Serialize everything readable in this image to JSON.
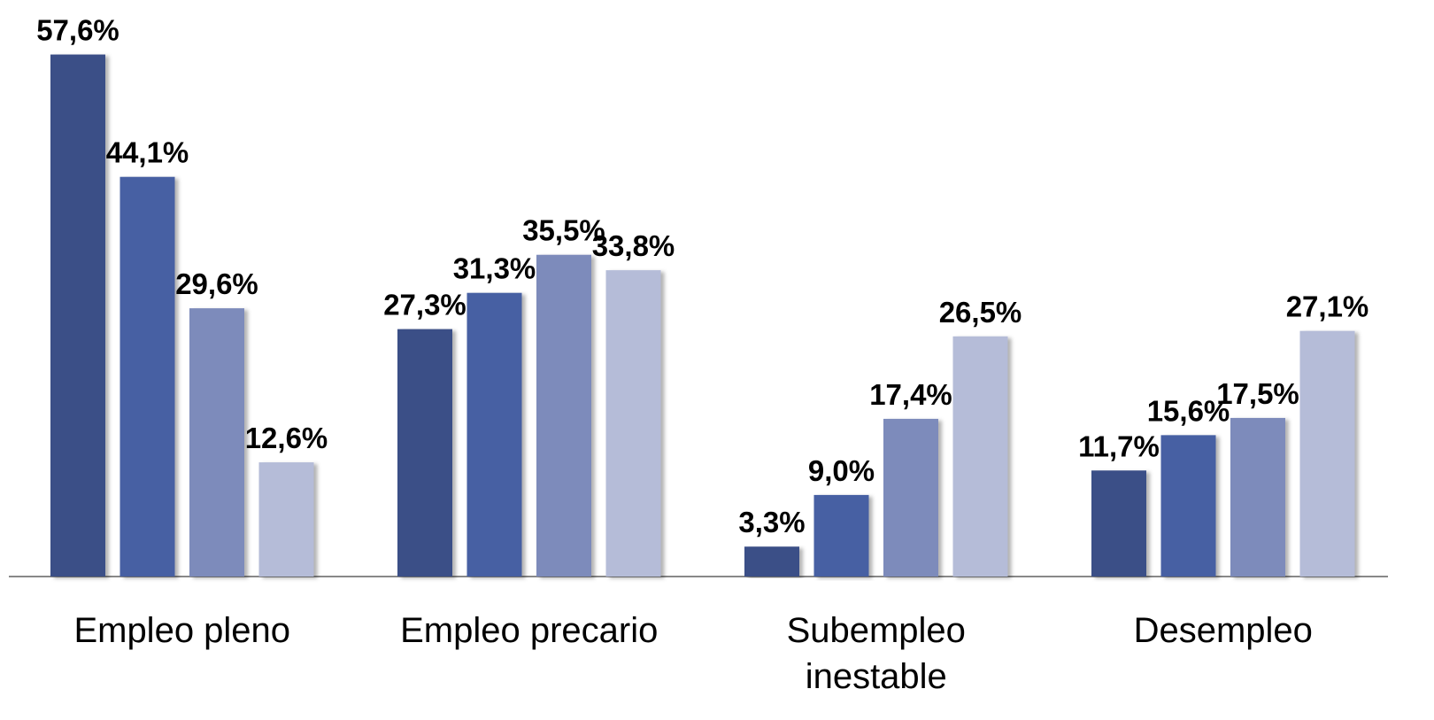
{
  "chart_data": {
    "type": "bar",
    "categories": [
      "Empleo pleno",
      "Empleo precario",
      "Subempleo inestable",
      "Desempleo"
    ],
    "series": [
      {
        "color": "#3a4f87",
        "values": [
          57.6,
          27.3,
          3.3,
          11.7
        ],
        "value_labels": [
          "57,6%",
          "27,3%",
          "3,3%",
          "11,7%"
        ]
      },
      {
        "color": "#4660a3",
        "values": [
          44.1,
          31.3,
          9.0,
          15.6
        ],
        "value_labels": [
          "44,1%",
          "31,3%",
          "9,0%",
          "15,6%"
        ]
      },
      {
        "color": "#7d8bbb",
        "values": [
          29.6,
          35.5,
          17.4,
          17.5
        ],
        "value_labels": [
          "29,6%",
          "35,5%",
          "17,4%",
          "17,5%"
        ]
      },
      {
        "color": "#b5bcd8",
        "values": [
          12.6,
          33.8,
          26.5,
          27.1
        ],
        "value_labels": [
          "12,6%",
          "33,8%",
          "26,5%",
          "27,1%"
        ]
      }
    ],
    "ylim": [
      0,
      60
    ]
  }
}
